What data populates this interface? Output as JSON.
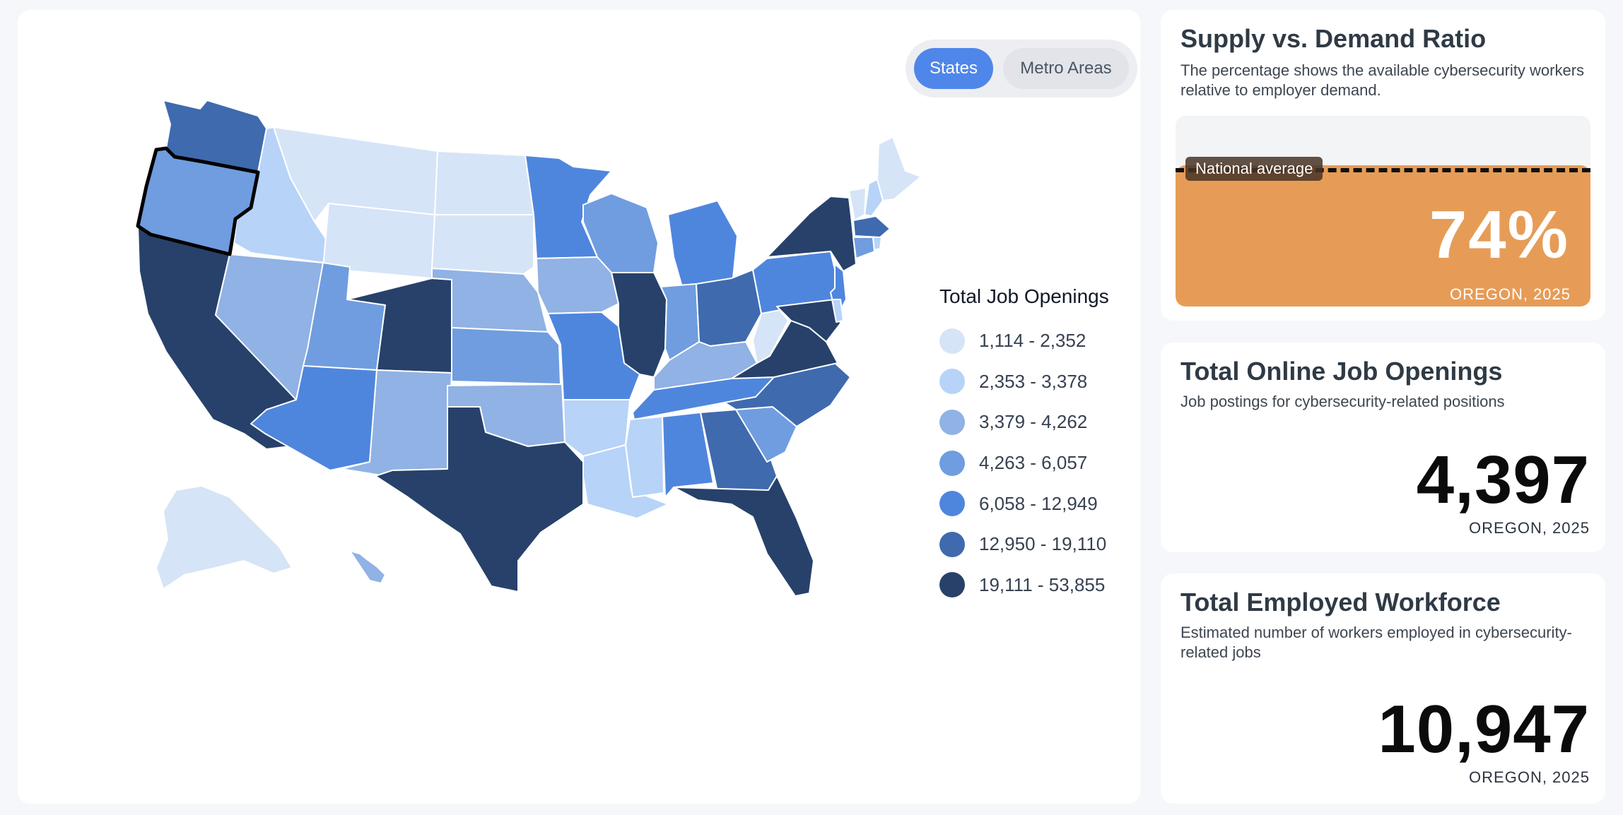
{
  "toggle": {
    "states_label": "States",
    "metro_label": "Metro Areas"
  },
  "legend": {
    "title": "Total Job Openings",
    "items": [
      {
        "label": "1,114 - 2,352",
        "color": "#d6e4f7"
      },
      {
        "label": "2,353 - 3,378",
        "color": "#b7d3f8"
      },
      {
        "label": "3,379 - 4,262",
        "color": "#90b2e4"
      },
      {
        "label": "4,263 - 6,057",
        "color": "#6f9ddf"
      },
      {
        "label": "6,058 - 12,949",
        "color": "#4f86dd"
      },
      {
        "label": "12,950 - 19,110",
        "color": "#3f6aae"
      },
      {
        "label": "19,111 - 53,855",
        "color": "#27416a"
      }
    ]
  },
  "map": {
    "selected_state": "Oregon",
    "state_bins": {
      "WA": 6,
      "OR": 4,
      "CA": 7,
      "ID": 2,
      "NV": 3,
      "MT": 1,
      "WY": 1,
      "UT": 4,
      "AZ": 5,
      "CO": 7,
      "NM": 3,
      "ND": 1,
      "SD": 1,
      "NE": 3,
      "KS": 4,
      "OK": 3,
      "TX": 7,
      "MN": 5,
      "IA": 3,
      "MO": 5,
      "AR": 2,
      "LA": 2,
      "WI": 4,
      "IL": 7,
      "MI": 5,
      "IN": 4,
      "OH": 6,
      "KY": 3,
      "TN": 5,
      "MS": 2,
      "AL": 5,
      "GA": 6,
      "FL": 7,
      "SC": 4,
      "NC": 6,
      "VA": 7,
      "WV": 1,
      "PA": 5,
      "NY": 7,
      "NJ": 5,
      "MD": 7,
      "DE": 2,
      "ME": 1,
      "NH": 2,
      "VT": 1,
      "MA": 6,
      "CT": 4,
      "RI": 2,
      "AK": 1,
      "HI": 3
    }
  },
  "ratio": {
    "title": "Supply vs. Demand Ratio",
    "subtitle": "The percentage shows the available cybersecurity workers relative to employer demand.",
    "national_average_label": "National average",
    "value": "74%",
    "percent": 74,
    "caption": "OREGON, 2025",
    "fill_color": "#e69c57"
  },
  "jobs": {
    "title": "Total Online Job Openings",
    "subtitle": "Job postings for cybersecurity-related positions",
    "value": "4,397",
    "caption": "OREGON, 2025"
  },
  "workforce": {
    "title": "Total Employed Workforce",
    "subtitle": "Estimated number of workers employed in cybersecurity-related jobs",
    "value": "10,947",
    "caption": "OREGON, 2025"
  }
}
